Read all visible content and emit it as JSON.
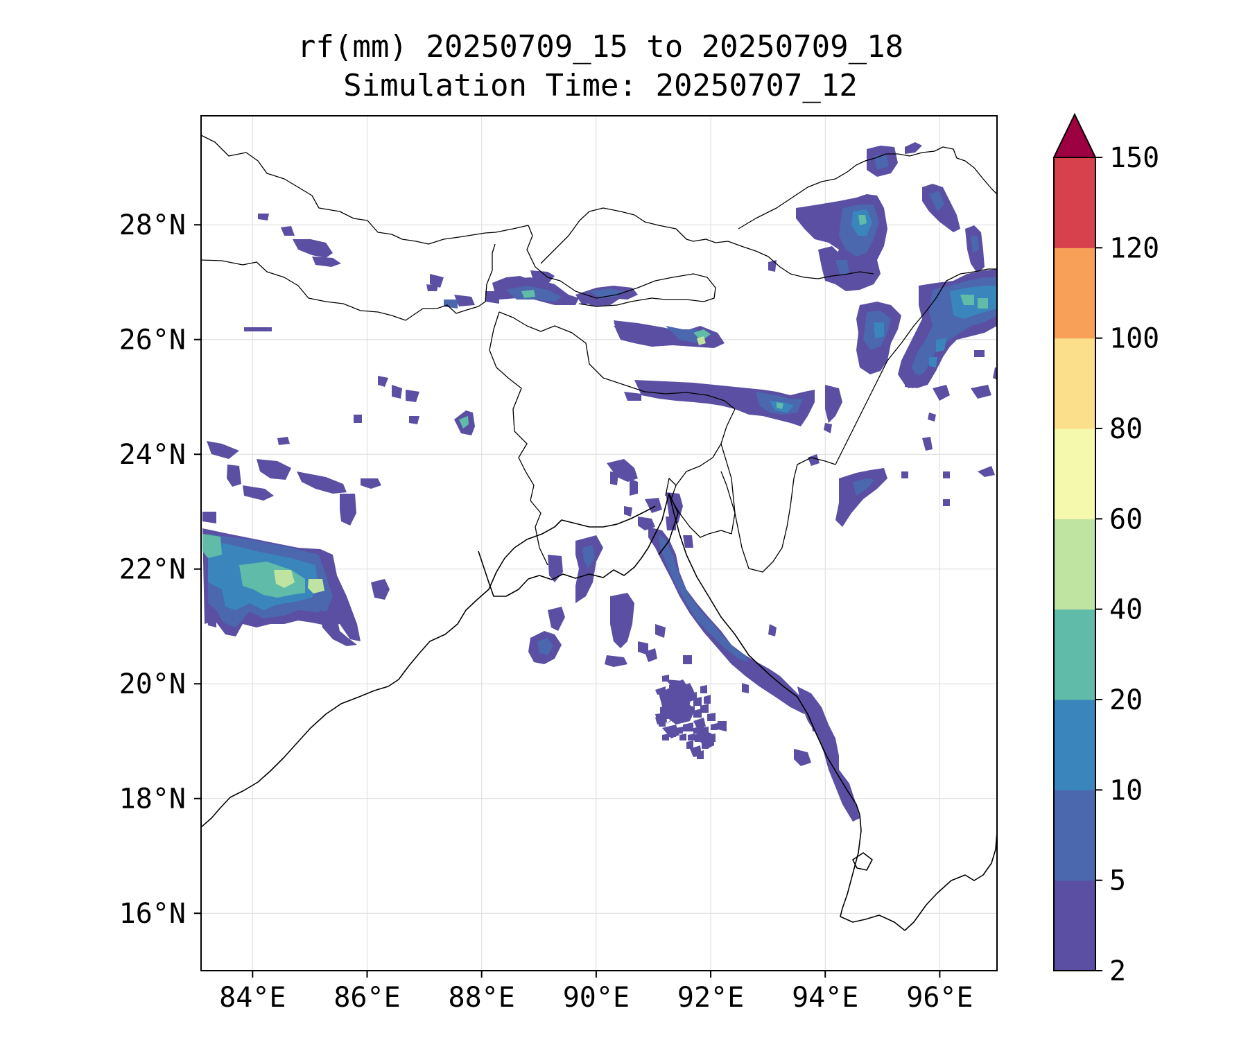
{
  "title": {
    "line1": "rf(mm) 20250709_15 to 20250709_18",
    "line2": "Simulation Time: 20250707_12"
  },
  "map": {
    "lon_range": [
      83.1,
      97.0
    ],
    "lat_range": [
      15.0,
      29.9
    ],
    "lon_ticks": [
      84,
      86,
      88,
      90,
      92,
      94,
      96
    ],
    "lon_tick_labels": [
      "84°E",
      "86°E",
      "88°E",
      "90°E",
      "92°E",
      "94°E",
      "96°E"
    ],
    "lat_ticks": [
      16,
      18,
      20,
      22,
      24,
      26,
      28
    ],
    "lat_tick_labels": [
      "16°N",
      "18°N",
      "20°N",
      "22°N",
      "24°N",
      "26°N",
      "28°N"
    ],
    "grid": true,
    "features": [
      "coastline",
      "country-borders"
    ]
  },
  "colorbar": {
    "levels": [
      2,
      5,
      10,
      20,
      40,
      60,
      80,
      100,
      120,
      150
    ],
    "level_labels": [
      "2",
      "5",
      "10",
      "20",
      "40",
      "60",
      "80",
      "100",
      "120",
      "150"
    ],
    "colors": [
      "#5a4fa2",
      "#4b67ae",
      "#3a86bc",
      "#60bba9",
      "#bfe3a0",
      "#f4f9ae",
      "#fbdf8a",
      "#f89f58",
      "#d7414e"
    ],
    "extend_color": "#9e0142",
    "extend": "max",
    "colormap": "Spectral_r"
  },
  "chart_data": {
    "type": "heatmap",
    "variable": "rf(mm)",
    "title": "rf(mm) 20250709_15 to 20250709_18",
    "subtitle": "Simulation Time: 20250707_12",
    "rain_cells": [
      {
        "lon": 84.6,
        "lat": 22.0,
        "max_mm": 60
      },
      {
        "lon": 85.2,
        "lat": 21.9,
        "max_mm": 60
      },
      {
        "lon": 83.4,
        "lat": 22.4,
        "max_mm": 40
      },
      {
        "lon": 91.7,
        "lat": 25.9,
        "max_mm": 60
      },
      {
        "lon": 91.8,
        "lat": 26.1,
        "max_mm": 40
      },
      {
        "lon": 88.8,
        "lat": 26.8,
        "max_mm": 20
      },
      {
        "lon": 90.3,
        "lat": 26.8,
        "max_mm": 10
      },
      {
        "lon": 93.3,
        "lat": 25.0,
        "max_mm": 20
      },
      {
        "lon": 94.8,
        "lat": 27.6,
        "max_mm": 20
      },
      {
        "lon": 95.8,
        "lat": 26.6,
        "max_mm": 20
      },
      {
        "lon": 91.4,
        "lat": 21.5,
        "max_mm": 10
      },
      {
        "lon": 93.0,
        "lat": 20.3,
        "max_mm": 10
      },
      {
        "lon": 94.5,
        "lat": 18.5,
        "max_mm": 5
      },
      {
        "lon": 89.4,
        "lat": 20.8,
        "max_mm": 10
      },
      {
        "lon": 91.4,
        "lat": 19.6,
        "max_mm": 10
      },
      {
        "lon": 94.7,
        "lat": 23.4,
        "max_mm": 10
      }
    ]
  }
}
